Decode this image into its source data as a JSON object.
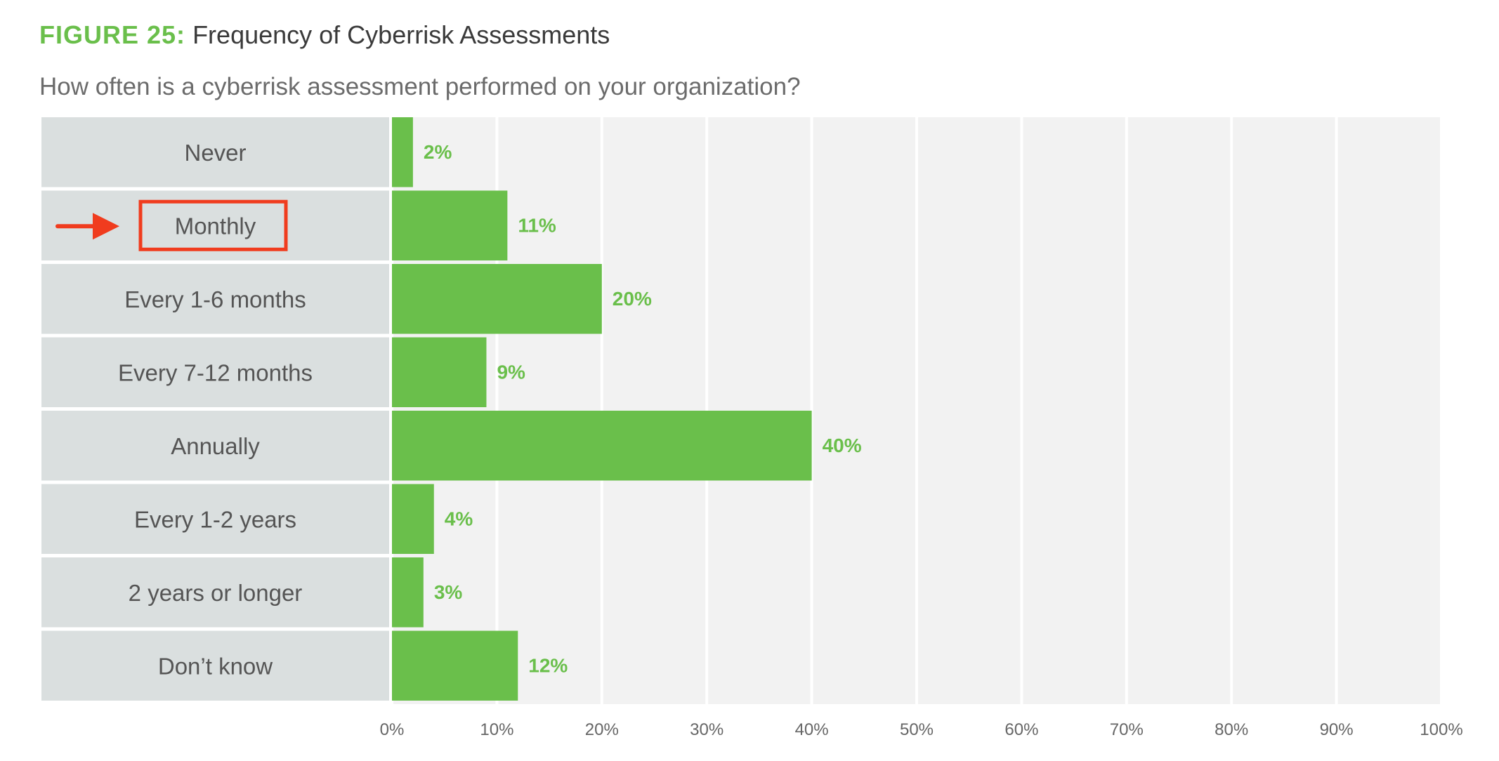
{
  "figure": {
    "prefix": "FIGURE 25:",
    "title": "Frequency of Cyberrisk Assessments",
    "subtitle": "How often is a cyberrisk assessment performed on your organization?"
  },
  "colors": {
    "bar": "#6abf4b",
    "label_text": "#6abf4b",
    "category_panel": "#dadfdf",
    "plot_background": "#f2f2f2",
    "gridline": "#ffffff",
    "annotation": "#f03c1e"
  },
  "chart_data": {
    "type": "bar",
    "orientation": "horizontal",
    "categories": [
      "Never",
      "Monthly",
      "Every 1-6 months",
      "Every 7-12 months",
      "Annually",
      "Every 1-2 years",
      "2 years or longer",
      "Don’t know"
    ],
    "values": [
      2,
      11,
      20,
      9,
      40,
      4,
      3,
      12
    ],
    "data_labels": [
      "2%",
      "11%",
      "20%",
      "9%",
      "40%",
      "4%",
      "3%",
      "12%"
    ],
    "xlim": [
      0,
      100
    ],
    "x_ticks": [
      "0%",
      "10%",
      "20%",
      "30%",
      "40%",
      "50%",
      "60%",
      "70%",
      "80%",
      "90%",
      "100%"
    ],
    "grid": true,
    "legend": "none",
    "annotation": {
      "type": "arrow-and-box",
      "target_category": "Monthly"
    }
  }
}
